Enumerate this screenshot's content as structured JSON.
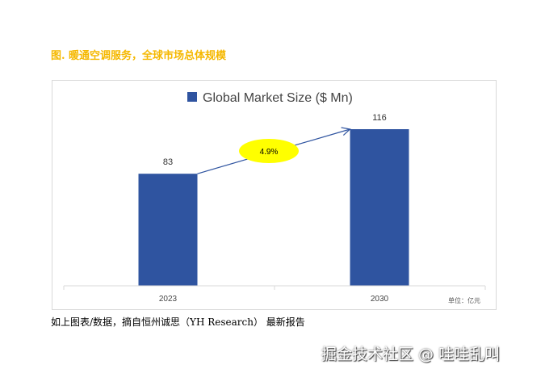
{
  "caption": "图. 暖通空调服务，全球市场总体规模",
  "source_note": "如上图表/数据，摘自恒州诚思（YH Research） 最新报告",
  "watermark": "掘金技术社区 @ 哇哇乱叫",
  "chart_data": {
    "type": "bar",
    "title": "",
    "legend": [
      {
        "name": "Global Market Size ($ Mn)",
        "color": "#2f54a0"
      }
    ],
    "legend_placement": "top",
    "categories": [
      "2023",
      "2030"
    ],
    "series": [
      {
        "name": "Global Market Size ($ Mn)",
        "values": [
          83,
          116
        ]
      }
    ],
    "data_labels": [
      "83",
      "116"
    ],
    "annotation": {
      "text": "4.9%",
      "type": "growth-arrow",
      "color": "#ffff00"
    },
    "unit_note": "单位：亿元",
    "ylim": [
      0,
      116
    ],
    "grid": false
  }
}
